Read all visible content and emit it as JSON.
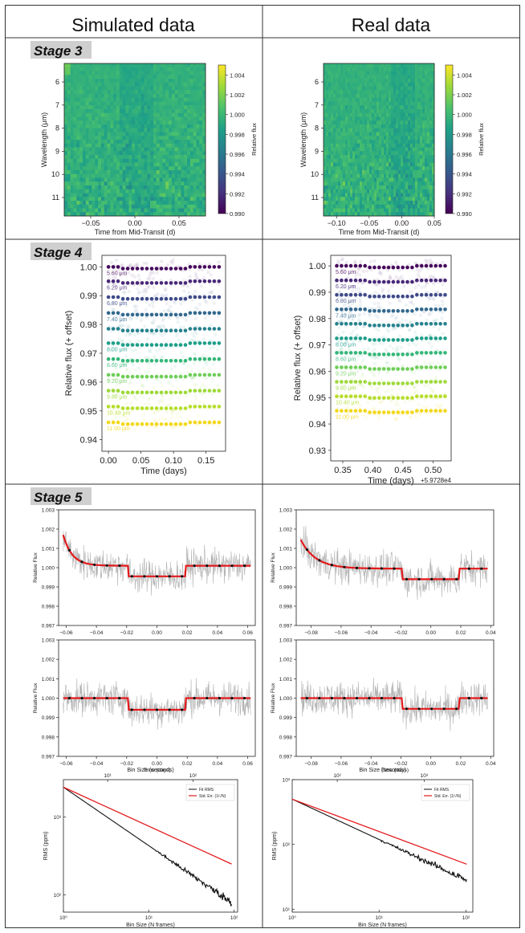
{
  "columns": {
    "left": "Simulated data",
    "right": "Real data"
  },
  "stages": {
    "s3": "Stage 3",
    "s4": "Stage 4",
    "s5": "Stage 5"
  },
  "chart_data": [
    {
      "id": "s3-sim",
      "type": "heatmap",
      "panel": "left",
      "stage": "Stage 3",
      "xlabel": "Time from Mid-Transit (d)",
      "ylabel": "Wavelength (μm)",
      "xlim": [
        -0.08,
        0.08
      ],
      "ylim": [
        5.2,
        11.8
      ],
      "xticks": [
        -0.05,
        0.0,
        0.05
      ],
      "xticklabels": [
        "−0.05",
        "0.00",
        "0.05"
      ],
      "yticks": [
        6,
        7,
        8,
        9,
        10,
        11
      ],
      "yticklabels": [
        "6",
        "7",
        "8",
        "9",
        "10",
        "11"
      ],
      "colorbar": {
        "label": "Relative flux",
        "range": [
          0.99,
          1.005
        ],
        "ticks": [
          1.004,
          1.002,
          1.0,
          0.998,
          0.996,
          0.994,
          0.992,
          0.99
        ],
        "ticklabels": [
          "1.004",
          "1.002",
          "1.000",
          "0.998",
          "0.996",
          "0.994",
          "0.992",
          "0.990"
        ]
      },
      "transit": [
        -0.02,
        0.02
      ]
    },
    {
      "id": "s3-real",
      "type": "heatmap",
      "panel": "right",
      "stage": "Stage 3",
      "xlabel": "Time from Mid-Transit (d)",
      "ylabel": "Wavelength (μm)",
      "xlim": [
        -0.12,
        0.05
      ],
      "ylim": [
        5.2,
        11.8
      ],
      "xticks": [
        -0.1,
        -0.05,
        0.0,
        0.05
      ],
      "xticklabels": [
        "−0.10",
        "−0.05",
        "0.00",
        "0.05"
      ],
      "yticks": [
        6,
        7,
        8,
        9,
        10,
        11
      ],
      "yticklabels": [
        "6",
        "7",
        "8",
        "9",
        "10",
        "11"
      ],
      "colorbar": {
        "label": "Relative flux",
        "range": [
          0.99,
          1.005
        ],
        "ticks": [
          1.004,
          1.002,
          1.0,
          0.998,
          0.996,
          0.994,
          0.992,
          0.99
        ],
        "ticklabels": [
          "1.004",
          "1.002",
          "1.000",
          "0.998",
          "0.996",
          "0.994",
          "0.992",
          "0.990"
        ]
      },
      "transit": [
        -0.02,
        0.02
      ]
    },
    {
      "id": "s4-sim",
      "type": "scatter",
      "panel": "left",
      "stage": "Stage 4",
      "xlabel": "Time (days)",
      "ylabel": "Relative flux (+ offset)",
      "xlim": [
        -0.01,
        0.18
      ],
      "ylim": [
        0.936,
        1.004
      ],
      "xticks": [
        0.0,
        0.05,
        0.1,
        0.15
      ],
      "xticklabels": [
        "0.00",
        "0.05",
        "0.10",
        "0.15"
      ],
      "yticks": [
        1.0,
        0.99,
        0.98,
        0.97,
        0.96,
        0.95,
        0.94
      ],
      "yticklabels": [
        "1.00",
        "0.99",
        "0.98",
        "0.97",
        "0.96",
        "0.95",
        "0.94"
      ],
      "x_range": [
        0.0,
        0.17
      ],
      "transit": [
        0.02,
        0.12
      ],
      "series": [
        {
          "name": "5.60 μm",
          "offset": 1.0,
          "color": "#46085c"
        },
        {
          "name": "6.20 μm",
          "offset": 0.995,
          "color": "#482878"
        },
        {
          "name": "6.80 μm",
          "offset": 0.9895,
          "color": "#3e4a89"
        },
        {
          "name": "7.40 μm",
          "offset": 0.984,
          "color": "#31688e"
        },
        {
          "name": "",
          "offset": 0.9785,
          "color": "#26828e"
        },
        {
          "name": "8.00 μm",
          "offset": 0.9735,
          "color": "#1f9e89"
        },
        {
          "name": "8.60 μm",
          "offset": 0.968,
          "color": "#35b779"
        },
        {
          "name": "9.20 μm",
          "offset": 0.9625,
          "color": "#6ece58"
        },
        {
          "name": "9.80 μm",
          "offset": 0.957,
          "color": "#9ed93a"
        },
        {
          "name": "10.40 μm",
          "offset": 0.9515,
          "color": "#b5de2b"
        },
        {
          "name": "11.00 μm",
          "offset": 0.946,
          "color": "#f2d81b"
        }
      ]
    },
    {
      "id": "s4-real",
      "type": "scatter",
      "panel": "right",
      "stage": "Stage 4",
      "xlabel": "Time (days)",
      "ylabel": "Relative flux (+ offset)",
      "xoffset_label": "+5.9728e4",
      "xlim": [
        0.33,
        0.53
      ],
      "ylim": [
        0.926,
        1.004
      ],
      "xticks": [
        0.35,
        0.4,
        0.45,
        0.5
      ],
      "xticklabels": [
        "0.35",
        "0.40",
        "0.45",
        "0.50"
      ],
      "yticks": [
        1.0,
        0.99,
        0.98,
        0.97,
        0.96,
        0.95,
        0.94,
        0.93
      ],
      "yticklabels": [
        "1.00",
        "0.99",
        "0.98",
        "0.97",
        "0.96",
        "0.95",
        "0.94",
        "0.93"
      ],
      "x_range": [
        0.34,
        0.52
      ],
      "transit": [
        0.39,
        0.47
      ],
      "series": [
        {
          "name": "5.60 μm",
          "offset": 1.0,
          "color": "#46085c"
        },
        {
          "name": "6.20 μm",
          "offset": 0.9945,
          "color": "#482878"
        },
        {
          "name": "6.80 μm",
          "offset": 0.989,
          "color": "#3e4a89"
        },
        {
          "name": "7.40 μm",
          "offset": 0.9835,
          "color": "#31688e"
        },
        {
          "name": "",
          "offset": 0.978,
          "color": "#26828e"
        },
        {
          "name": "8.00 μm",
          "offset": 0.9725,
          "color": "#1f9e89"
        },
        {
          "name": "8.60 μm",
          "offset": 0.967,
          "color": "#35b779"
        },
        {
          "name": "9.20 μm",
          "offset": 0.9615,
          "color": "#6ece58"
        },
        {
          "name": "9.80 μm",
          "offset": 0.956,
          "color": "#9ed93a"
        },
        {
          "name": "10.40 μm",
          "offset": 0.9505,
          "color": "#b5de2b"
        },
        {
          "name": "11.00 μm",
          "offset": 0.945,
          "color": "#f2d81b"
        }
      ]
    },
    {
      "id": "s5-sim-fit",
      "type": "line",
      "panel": "left",
      "stage": "Stage 5",
      "xlabel": "",
      "ylabel": "Relative Flux",
      "xlim": [
        -0.065,
        0.065
      ],
      "ylim": [
        0.997,
        1.003
      ],
      "xticks": [
        -0.06,
        -0.04,
        -0.02,
        0.0,
        0.02,
        0.04,
        0.06
      ],
      "xticklabels": [
        "−0.06",
        "−0.04",
        "−0.02",
        "0.00",
        "0.02",
        "0.04",
        "0.06"
      ],
      "yticks": [
        1.003,
        1.002,
        1.001,
        1.0,
        0.999,
        0.998,
        0.997
      ],
      "yticklabels": [
        "1.003",
        "1.002",
        "1.001",
        "1.000",
        "0.999",
        "0.998",
        "0.997"
      ],
      "model": {
        "x_range": [
          -0.062,
          0.062
        ],
        "transit": [
          -0.019,
          0.019
        ],
        "depth": 0.00055,
        "ramp_amp": 0.0016,
        "ramp_tau": 0.006,
        "baseline": 1.0001
      },
      "binned_points": 15
    },
    {
      "id": "s5-real-fit",
      "type": "line",
      "panel": "right",
      "stage": "Stage 5",
      "xlabel": "",
      "ylabel": "Relative Flux",
      "xlim": [
        -0.09,
        0.042
      ],
      "ylim": [
        0.997,
        1.003
      ],
      "xticks": [
        -0.08,
        -0.06,
        -0.04,
        -0.02,
        0.0,
        0.02,
        0.04
      ],
      "xticklabels": [
        "−0.08",
        "−0.06",
        "−0.04",
        "−0.02",
        "0.00",
        "0.02",
        "0.04"
      ],
      "yticks": [
        1.003,
        1.002,
        1.001,
        1.0,
        0.999,
        0.998,
        0.997
      ],
      "yticklabels": [
        "1.003",
        "1.002",
        "1.001",
        "1.000",
        "0.999",
        "0.998",
        "0.997"
      ],
      "model": {
        "x_range": [
          -0.087,
          0.038
        ],
        "transit": [
          -0.019,
          0.019
        ],
        "depth": 0.00055,
        "ramp_amp": 0.0015,
        "ramp_tau": 0.01,
        "baseline": 0.99995
      },
      "binned_points": 15
    },
    {
      "id": "s5-sim-det",
      "type": "line",
      "panel": "left",
      "stage": "Stage 5",
      "xlabel": "Time (days)",
      "ylabel": "Relative Flux",
      "xlim": [
        -0.065,
        0.065
      ],
      "ylim": [
        0.997,
        1.003
      ],
      "xticks": [
        -0.06,
        -0.04,
        -0.02,
        0.0,
        0.02,
        0.04,
        0.06
      ],
      "xticklabels": [
        "−0.06",
        "−0.04",
        "−0.02",
        "0.00",
        "0.02",
        "0.04",
        "0.06"
      ],
      "yticks": [
        1.003,
        1.002,
        1.001,
        1.0,
        0.999,
        0.998,
        0.997
      ],
      "yticklabels": [
        "1.003",
        "1.002",
        "1.001",
        "1.000",
        "0.999",
        "0.998",
        "0.997"
      ],
      "model": {
        "x_range": [
          -0.062,
          0.062
        ],
        "transit": [
          -0.019,
          0.019
        ],
        "depth": 0.0006,
        "ramp_amp": 0,
        "ramp_tau": 0.01,
        "baseline": 1.0
      },
      "binned_points": 15
    },
    {
      "id": "s5-real-det",
      "type": "line",
      "panel": "right",
      "stage": "Stage 5",
      "xlabel": "Time (days)",
      "ylabel": "Relative Flux",
      "xlim": [
        -0.09,
        0.042
      ],
      "ylim": [
        0.997,
        1.003
      ],
      "xticks": [
        -0.08,
        -0.06,
        -0.04,
        -0.02,
        0.0,
        0.02,
        0.04
      ],
      "xticklabels": [
        "−0.08",
        "−0.06",
        "−0.04",
        "−0.02",
        "0.00",
        "0.02",
        "0.04"
      ],
      "yticks": [
        1.003,
        1.002,
        1.001,
        1.0,
        0.999,
        0.998,
        0.997
      ],
      "yticklabels": [
        "1.003",
        "1.002",
        "1.001",
        "1.000",
        "0.999",
        "0.998",
        "0.997"
      ],
      "model": {
        "x_range": [
          -0.087,
          0.038
        ],
        "transit": [
          -0.019,
          0.019
        ],
        "depth": 0.00055,
        "ramp_amp": 0,
        "ramp_tau": 0.01,
        "baseline": 1.0
      },
      "binned_points": 15
    },
    {
      "id": "s5-sim-rms",
      "type": "line",
      "panel": "left",
      "stage": "Stage 5",
      "scale": "log-log",
      "xlabel": "Bin Size (N frames)",
      "ylabel": "RMS (ppm)",
      "top_xlabel": "Bin Size (seconds)",
      "xlim": [
        1,
        110
      ],
      "ylim": [
        60,
        3000
      ],
      "xtick_vals": [
        1,
        10,
        100
      ],
      "xticklabels": [
        "10⁰",
        "10¹",
        "10²"
      ],
      "top_tick_vals": [
        3.3,
        33
      ],
      "top_ticklabels": [
        "10¹",
        "10²"
      ],
      "ytick_vals": [
        1000,
        100
      ],
      "yticklabels": [
        "10³",
        "10²"
      ],
      "legend": [
        "Fit RMS",
        "Std. Err. (1/√N)"
      ],
      "fit_rms": {
        "start": 2400,
        "end": 80,
        "noise_start_bin": 12
      },
      "std_err": {
        "start": 2400,
        "slope": -0.5
      }
    },
    {
      "id": "s5-real-rms",
      "type": "line",
      "panel": "right",
      "stage": "Stage 5",
      "scale": "log-log",
      "xlabel": "Bin Size (N frames)",
      "ylabel": "RMS (ppm)",
      "top_xlabel": "Bin Size (seconds)",
      "xlim": [
        1,
        120
      ],
      "ylim": [
        9,
        1000
      ],
      "xtick_vals": [
        1,
        10,
        100
      ],
      "xticklabels": [
        "10⁰",
        "10¹",
        "10²"
      ],
      "top_tick_vals": [
        3.3,
        33
      ],
      "top_ticklabels": [
        "10²",
        "10³"
      ],
      "ytick_vals": [
        1000,
        100,
        10
      ],
      "yticklabels": [
        "10³",
        "10²",
        "10¹"
      ],
      "legend": [
        "Fit RMS",
        "Std. Err. (1/√N)"
      ],
      "fit_rms": {
        "start": 500,
        "end": 28,
        "noise_start_bin": 10
      },
      "std_err": {
        "start": 500,
        "slope": -0.5
      }
    }
  ],
  "colors": {
    "accent_red": "#e31a1c",
    "grid_border": "#333333",
    "stage_bg": "#cfcfcf"
  }
}
